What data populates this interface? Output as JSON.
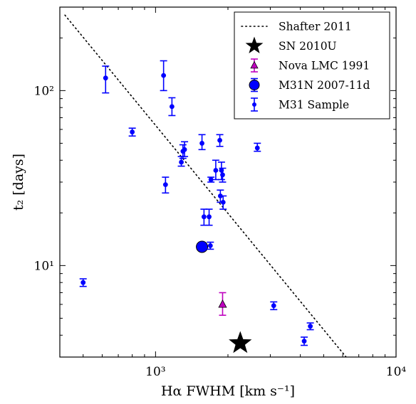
{
  "chart_data": {
    "type": "scatter",
    "xscale": "log",
    "yscale": "log",
    "xlim": [
      400,
      10000
    ],
    "ylim": [
      3.0,
      300
    ],
    "xlabel": "Hα FWHM [km s⁻¹]",
    "ylabel": "t₂ [days]",
    "x_ticks": [
      {
        "value": 1000,
        "label": "10³"
      },
      {
        "value": 10000,
        "label": "10⁴"
      }
    ],
    "y_ticks": [
      {
        "value": 10,
        "label": "10¹"
      },
      {
        "value": 100,
        "label": "10²"
      }
    ],
    "legend": {
      "position": "top-right",
      "entries": [
        {
          "label": "Shafter 2011",
          "marker": "dotted-line",
          "color": "#000000"
        },
        {
          "label": "SN 2010U",
          "marker": "star",
          "color": "#000000"
        },
        {
          "label": "Nova LMC 1991",
          "marker": "triangle",
          "color": "#bf00bf"
        },
        {
          "label": "M31N 2007-11d",
          "marker": "large-circle",
          "color": "#0000ff"
        },
        {
          "label": "M31 Sample",
          "marker": "errorbar-point",
          "color": "#0000ff"
        }
      ]
    },
    "series": [
      {
        "name": "Shafter 2011",
        "style": "dotted",
        "color": "#000000",
        "points": [
          {
            "x": 420,
            "y": 270
          },
          {
            "x": 6200,
            "y": 3.0
          }
        ]
      },
      {
        "name": "SN 2010U",
        "marker": "star",
        "color": "#000000",
        "points": [
          {
            "x": 2250,
            "y": 3.6
          }
        ]
      },
      {
        "name": "Nova LMC 1991",
        "marker": "triangle",
        "color": "#bf00bf",
        "points": [
          {
            "x": 1900,
            "y": 6.0,
            "ylo": 5.2,
            "yhi": 7.0
          }
        ]
      },
      {
        "name": "M31N 2007-11d",
        "marker": "large-circle",
        "color": "#0000ff",
        "points": [
          {
            "x": 1560,
            "y": 12.8
          }
        ]
      },
      {
        "name": "M31 Sample",
        "marker": "errorbar-point",
        "color": "#0000ff",
        "points": [
          {
            "x": 620,
            "y": 118,
            "ylo": 97,
            "yhi": 138
          },
          {
            "x": 1080,
            "y": 122,
            "ylo": 100,
            "yhi": 148
          },
          {
            "x": 1170,
            "y": 81,
            "ylo": 72,
            "yhi": 91
          },
          {
            "x": 800,
            "y": 58,
            "ylo": 55,
            "yhi": 61
          },
          {
            "x": 1280,
            "y": 39,
            "ylo": 37,
            "yhi": 42
          },
          {
            "x": 1300,
            "y": 45,
            "ylo": 41,
            "yhi": 49
          },
          {
            "x": 1320,
            "y": 46,
            "ylo": 42,
            "yhi": 51
          },
          {
            "x": 1560,
            "y": 50,
            "ylo": 46,
            "yhi": 56
          },
          {
            "x": 1850,
            "y": 52,
            "ylo": 48,
            "yhi": 56
          },
          {
            "x": 2650,
            "y": 47,
            "ylo": 45,
            "yhi": 50
          },
          {
            "x": 1700,
            "y": 31,
            "ylo": 30,
            "yhi": 32
          },
          {
            "x": 1780,
            "y": 35,
            "ylo": 31,
            "yhi": 40
          },
          {
            "x": 1880,
            "y": 35,
            "ylo": 31,
            "yhi": 39
          },
          {
            "x": 1900,
            "y": 33,
            "ylo": 30,
            "yhi": 36
          },
          {
            "x": 1100,
            "y": 29,
            "ylo": 26,
            "yhi": 32
          },
          {
            "x": 1860,
            "y": 25,
            "ylo": 23,
            "yhi": 27
          },
          {
            "x": 1910,
            "y": 23,
            "ylo": 21,
            "yhi": 25
          },
          {
            "x": 1590,
            "y": 19,
            "ylo": 17,
            "yhi": 21
          },
          {
            "x": 1670,
            "y": 19,
            "ylo": 17,
            "yhi": 21
          },
          {
            "x": 1690,
            "y": 13,
            "ylo": 12.4,
            "yhi": 13.6
          },
          {
            "x": 500,
            "y": 8.0,
            "ylo": 7.6,
            "yhi": 8.4
          },
          {
            "x": 3100,
            "y": 5.9,
            "ylo": 5.6,
            "yhi": 6.2
          },
          {
            "x": 4400,
            "y": 4.5,
            "ylo": 4.3,
            "yhi": 4.7
          },
          {
            "x": 4150,
            "y": 3.7,
            "ylo": 3.5,
            "yhi": 3.9
          }
        ]
      }
    ]
  }
}
